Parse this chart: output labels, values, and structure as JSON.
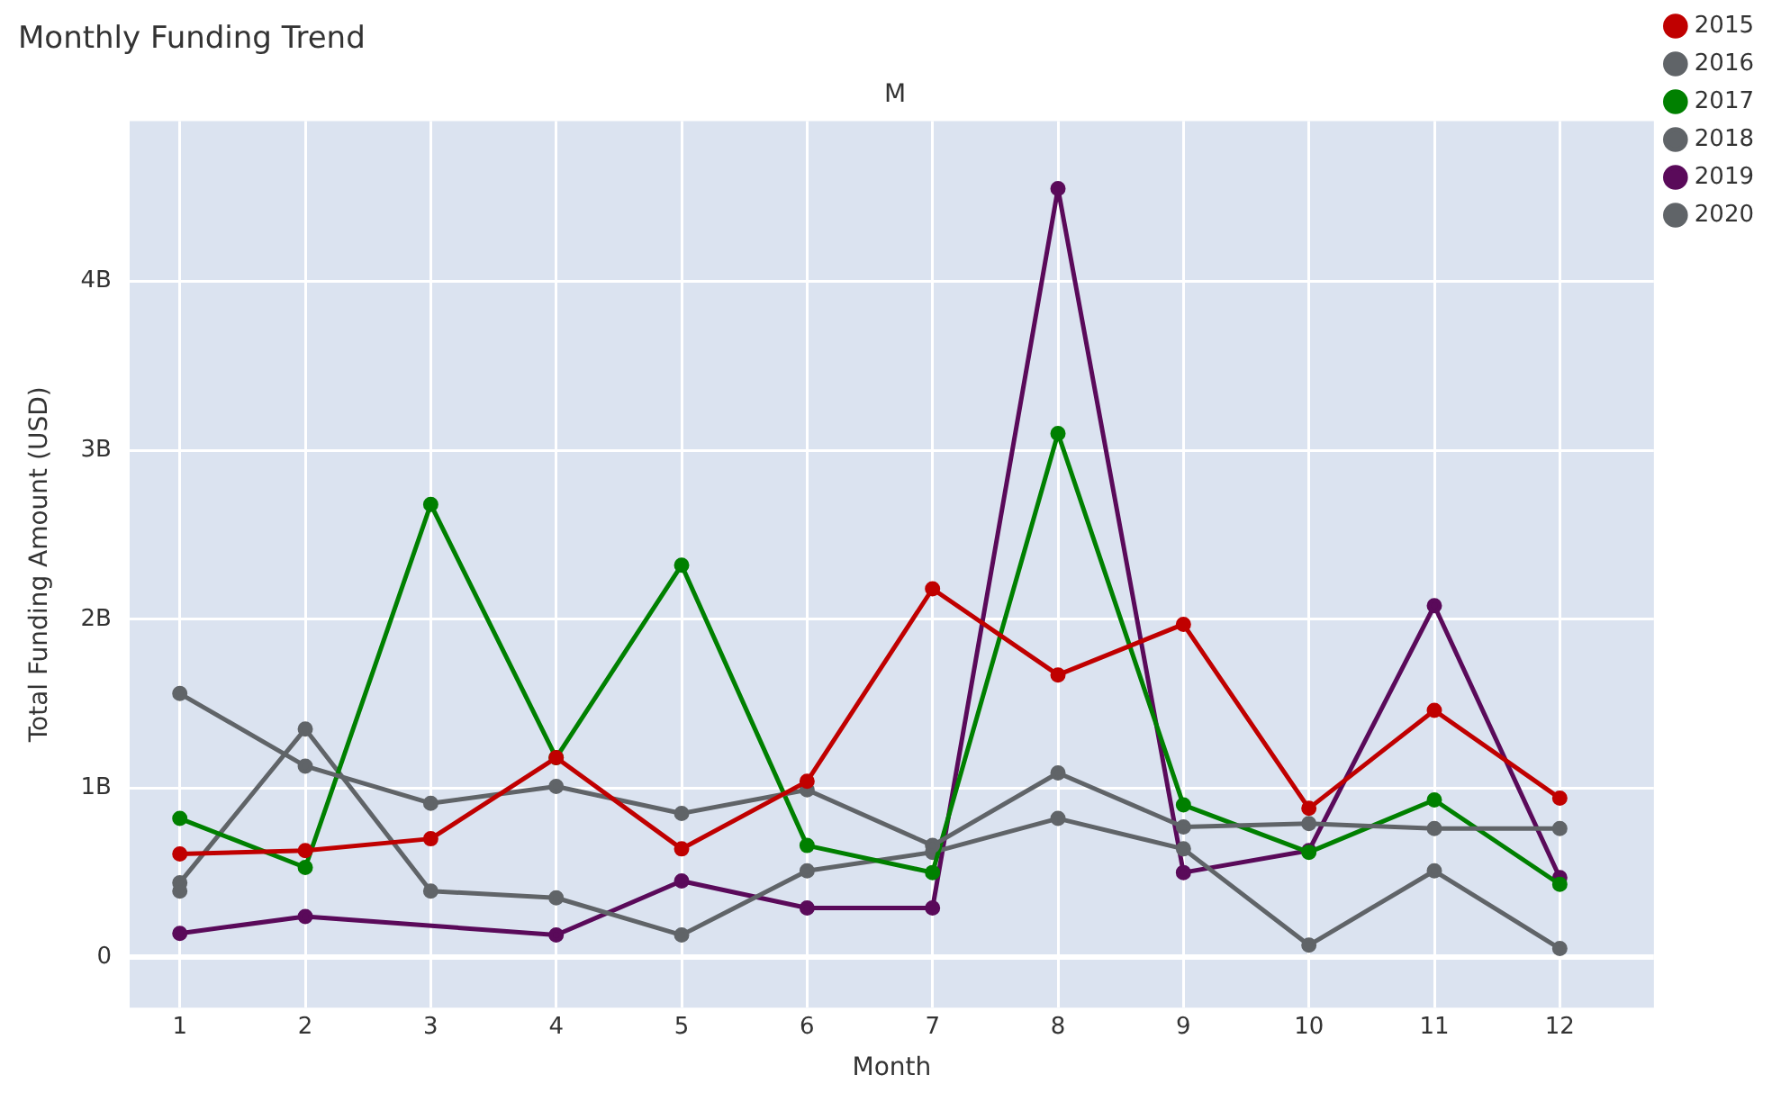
{
  "chart_data": {
    "type": "line",
    "title": "Monthly Funding Trend",
    "subtitle": "M",
    "xlabel": "Month",
    "ylabel": "Total Funding Amount (USD)",
    "x": [
      1,
      2,
      3,
      4,
      5,
      6,
      7,
      8,
      9,
      10,
      11,
      12
    ],
    "series": [
      {
        "name": "2015",
        "color": "#c00000",
        "values": [
          0.61,
          0.63,
          0.7,
          1.18,
          0.64,
          1.04,
          2.18,
          1.67,
          1.97,
          0.88,
          1.46,
          0.94
        ]
      },
      {
        "name": "2016",
        "color": "#606468",
        "values": [
          1.56,
          1.13,
          0.91,
          1.01,
          0.85,
          0.99,
          0.66,
          1.09,
          0.77,
          0.79,
          0.76,
          0.76
        ]
      },
      {
        "name": "2017",
        "color": "#008000",
        "values": [
          0.82,
          0.53,
          2.68,
          1.18,
          2.32,
          0.66,
          0.5,
          3.1,
          0.9,
          0.62,
          0.93,
          0.43
        ]
      },
      {
        "name": "2018",
        "color": "#606468",
        "values": [
          0.44,
          1.35,
          0.39,
          0.35,
          0.13,
          0.51,
          0.62,
          0.82,
          0.64,
          0.07,
          0.51,
          0.05
        ]
      },
      {
        "name": "2019",
        "color": "#5a0a5a",
        "x": [
          1,
          2,
          4,
          5,
          6,
          7,
          8,
          9,
          10,
          11,
          12
        ],
        "values": [
          0.14,
          0.24,
          0.13,
          0.45,
          0.29,
          0.29,
          4.55,
          0.5,
          0.63,
          2.08,
          0.47
        ]
      },
      {
        "name": "2020",
        "color": "#606468",
        "x": [
          1
        ],
        "values": [
          0.39
        ]
      }
    ],
    "xlim": [
      0.6,
      12.75
    ],
    "xticks": [
      1,
      2,
      3,
      4,
      5,
      6,
      7,
      8,
      9,
      10,
      11,
      12
    ],
    "ylim": [
      -0.3,
      4.95
    ],
    "yticks": [
      {
        "value": 0,
        "label": "0"
      },
      {
        "value": 1,
        "label": "1B"
      },
      {
        "value": 2,
        "label": "2B"
      },
      {
        "value": 3,
        "label": "3B"
      },
      {
        "value": 4,
        "label": "4B"
      }
    ],
    "grid": true,
    "legend": "top right",
    "marker": "circle",
    "line_style": "solid"
  }
}
